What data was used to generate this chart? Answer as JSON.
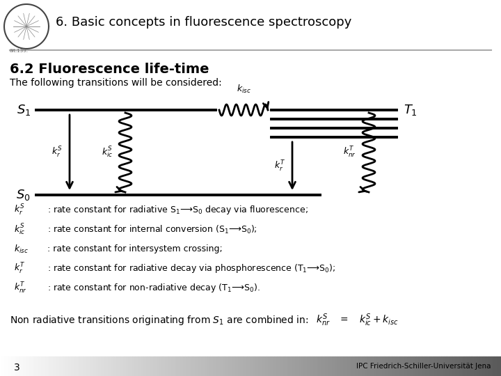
{
  "title_header": "6. Basic concepts in fluorescence spectroscopy",
  "section_title": "6.2 Fluorescence life-time",
  "subtitle": "The following transitions will be considered:",
  "bg_color": "#ffffff",
  "footer_text": "IPC Friedrich-Schiller-Universität Jena",
  "page_number": "3",
  "bullet_labels": [
    "$k_r^S$",
    "$k_{ic}^S$",
    "$k_{isc}$",
    "$k_r^T$",
    "$k_{nr}^T$"
  ],
  "bullet_lines": [
    ": rate constant for radiative S$_1$⟶S$_0$ decay via fluorescence;",
    ": rate constant for internal conversion (S$_1$⟶S$_0$);",
    ": rate constant for intersystem crossing;",
    ": rate constant for radiative decay via phosphorescence (T$_1$⟶S$_0$);",
    ": rate constant for non-radiative decay (T$_1$⟶S$_0$)."
  ],
  "header_line_color": "#aaaaaa",
  "diagram_lw": 2.5,
  "S1_label": "$S_1$",
  "S0_label": "$S_0$",
  "T1_label": "$T_1$",
  "kisc_label": "$k_{isc}$",
  "krs_label": "$k_r^S$",
  "kics_label": "$k_{ic}^S$",
  "krt_label": "$k_r^T$",
  "knrt_label": "$k_{nr}^T$"
}
